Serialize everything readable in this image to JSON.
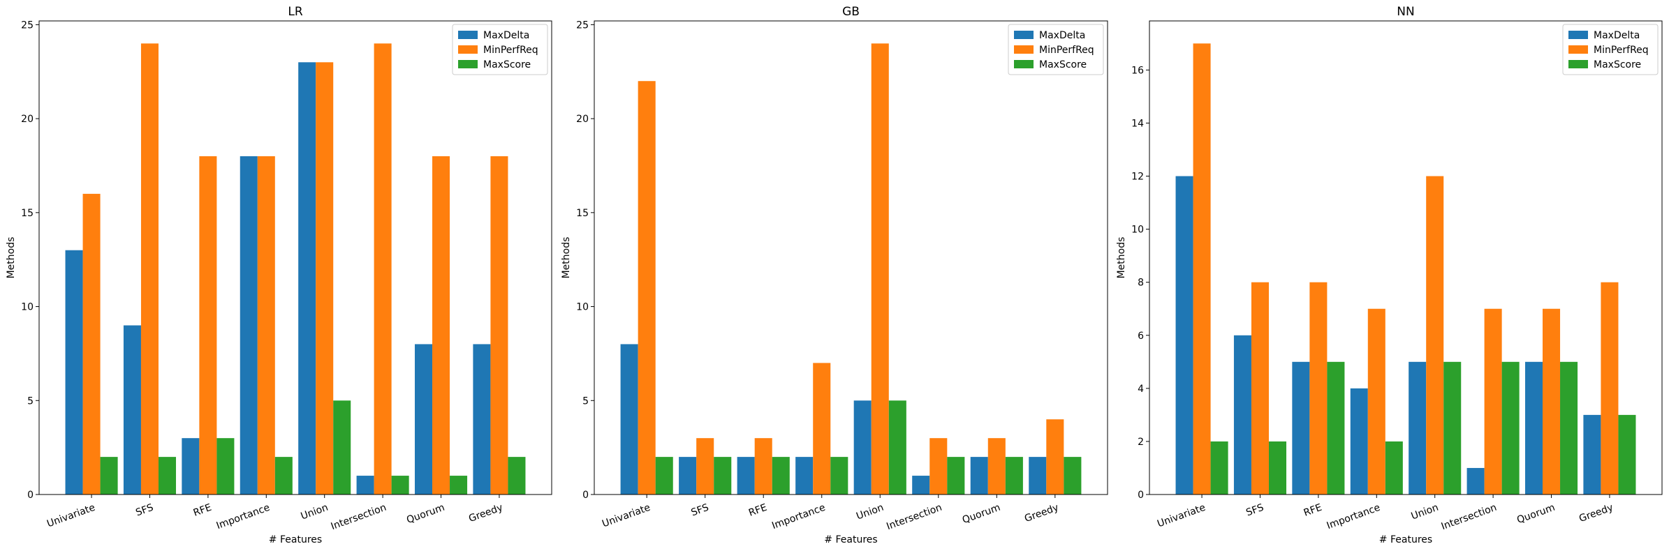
{
  "colors": {
    "MaxDelta": "#1f77b4",
    "MinPerfReq": "#ff7f0e",
    "MaxScore": "#2ca02c"
  },
  "chart_data": [
    {
      "type": "bar",
      "title": "LR",
      "xlabel": "# Features",
      "ylabel": "Methods",
      "categories": [
        "Univariate",
        "SFS",
        "RFE",
        "Importance",
        "Union",
        "Intersection",
        "Quorum",
        "Greedy"
      ],
      "series": [
        {
          "name": "MaxDelta",
          "values": [
            13,
            9,
            3,
            18,
            23,
            1,
            8,
            8
          ]
        },
        {
          "name": "MinPerfReq",
          "values": [
            16,
            24,
            18,
            18,
            23,
            24,
            18,
            18
          ]
        },
        {
          "name": "MaxScore",
          "values": [
            2,
            2,
            3,
            2,
            5,
            1,
            1,
            2
          ]
        }
      ],
      "ylim": [
        0,
        25.2
      ],
      "yticks": [
        0,
        5,
        10,
        15,
        20,
        25
      ],
      "legend": "top-right",
      "grid": false
    },
    {
      "type": "bar",
      "title": "GB",
      "xlabel": "# Features",
      "ylabel": "Methods",
      "categories": [
        "Univariate",
        "SFS",
        "RFE",
        "Importance",
        "Union",
        "Intersection",
        "Quorum",
        "Greedy"
      ],
      "series": [
        {
          "name": "MaxDelta",
          "values": [
            8,
            2,
            2,
            2,
            5,
            1,
            2,
            2
          ]
        },
        {
          "name": "MinPerfReq",
          "values": [
            22,
            3,
            3,
            7,
            24,
            3,
            3,
            4
          ]
        },
        {
          "name": "MaxScore",
          "values": [
            2,
            2,
            2,
            2,
            5,
            2,
            2,
            2
          ]
        }
      ],
      "ylim": [
        0,
        25.2
      ],
      "yticks": [
        0,
        5,
        10,
        15,
        20,
        25
      ],
      "legend": "top-right",
      "grid": false
    },
    {
      "type": "bar",
      "title": "NN",
      "xlabel": "# Features",
      "ylabel": "Methods",
      "categories": [
        "Univariate",
        "SFS",
        "RFE",
        "Importance",
        "Union",
        "Intersection",
        "Quorum",
        "Greedy"
      ],
      "series": [
        {
          "name": "MaxDelta",
          "values": [
            12,
            6,
            5,
            4,
            5,
            1,
            5,
            3
          ]
        },
        {
          "name": "MinPerfReq",
          "values": [
            17,
            8,
            8,
            7,
            12,
            7,
            7,
            8
          ]
        },
        {
          "name": "MaxScore",
          "values": [
            2,
            2,
            5,
            2,
            5,
            5,
            5,
            3
          ]
        }
      ],
      "ylim": [
        0,
        17.85
      ],
      "yticks": [
        0,
        2,
        4,
        6,
        8,
        10,
        12,
        14,
        16
      ],
      "legend": "top-right",
      "grid": false
    }
  ]
}
